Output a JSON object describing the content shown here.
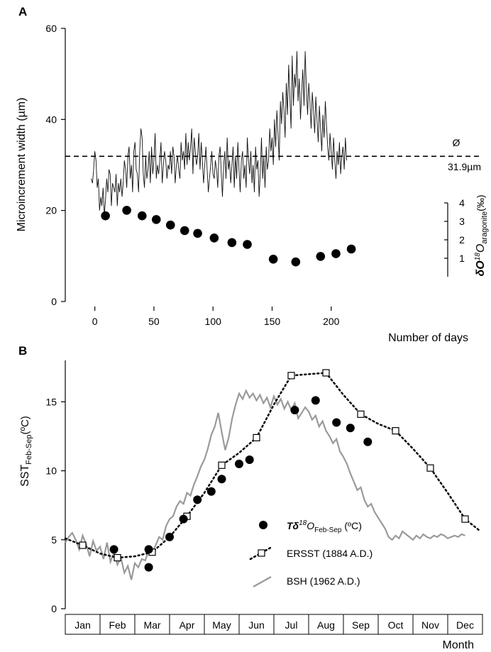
{
  "chart_data": [
    {
      "panel": "A",
      "type": "line",
      "ylabel": "Microincrement width (µm)",
      "xlabel": "Number of days",
      "xlim": [
        -25,
        328
      ],
      "ylim": [
        0,
        60
      ],
      "xticks": [
        0,
        50,
        100,
        150,
        200
      ],
      "yticks": [
        0,
        20,
        40,
        60
      ],
      "mean_line": {
        "value": 31.9,
        "symbol": "Ø",
        "label": "31.9µm"
      },
      "series": [
        {
          "kind": "line",
          "x_start": -3,
          "x_step": 1,
          "values": [
            27,
            26,
            29,
            33,
            31,
            25,
            27,
            20,
            23,
            21,
            25,
            19,
            22,
            27,
            24,
            29,
            28,
            21,
            26,
            25,
            24,
            28,
            21,
            26,
            24,
            27,
            23,
            26,
            31,
            29,
            25,
            32,
            34,
            27,
            30,
            24,
            33,
            35,
            29,
            28,
            24,
            33,
            38,
            36,
            28,
            25,
            32,
            27,
            29,
            33,
            26,
            34,
            28,
            31,
            37,
            27,
            30,
            28,
            31,
            35,
            26,
            30,
            33,
            31,
            27,
            30,
            29,
            33,
            28,
            34,
            32,
            26,
            30,
            32,
            29,
            27,
            35,
            31,
            33,
            29,
            37,
            30,
            35,
            31,
            34,
            38,
            28,
            36,
            33,
            30,
            32,
            37,
            29,
            35,
            31,
            26,
            30,
            34,
            29,
            24,
            27,
            30,
            33,
            28,
            27,
            31,
            29,
            25,
            32,
            34,
            28,
            23,
            30,
            33,
            27,
            36,
            29,
            31,
            26,
            30,
            34,
            25,
            32,
            27,
            35,
            29,
            24,
            31,
            33,
            27,
            30,
            25,
            36,
            31,
            28,
            33,
            26,
            30,
            24,
            34,
            29,
            31,
            23,
            28,
            36,
            27,
            32,
            25,
            34,
            29,
            31,
            38,
            33,
            36,
            30,
            40,
            34,
            42,
            37,
            31,
            44,
            39,
            46,
            42,
            36,
            48,
            41,
            52,
            45,
            38,
            54,
            43,
            50,
            47,
            55,
            44,
            49,
            40,
            46,
            51,
            43,
            55,
            47,
            41,
            48,
            44,
            38,
            46,
            42,
            37,
            45,
            40,
            35,
            43,
            38,
            33,
            41,
            36,
            44,
            39,
            34,
            31,
            37,
            33,
            29,
            36,
            31,
            27,
            33,
            30,
            35,
            28,
            32,
            34,
            29,
            36,
            31
          ],
          "color": "#111111"
        },
        {
          "kind": "points",
          "name": "δ18O aragonite",
          "axis": "right",
          "x": [
            9,
            27,
            40,
            52,
            64,
            76,
            87,
            101,
            116,
            129,
            151,
            170,
            191,
            204,
            217
          ],
          "y": [
            3.3,
            3.6,
            3.3,
            3.1,
            2.8,
            2.5,
            2.35,
            2.1,
            1.85,
            1.75,
            0.95,
            0.8,
            1.1,
            1.25,
            1.5
          ]
        }
      ],
      "right_axis": {
        "label": "δ18O",
        "label_sub": "aragonite",
        "label_unit": "(‰)",
        "ylim": [
          0,
          4
        ],
        "yticks": [
          1,
          2,
          3,
          4
        ]
      }
    },
    {
      "panel": "B",
      "type": "line",
      "ylabel": "SST",
      "ylabel_sub": "Feb-Sep",
      "ylabel_unit": "(ºC)",
      "xlabel": "Month",
      "ylim": [
        0,
        18
      ],
      "yticks": [
        0,
        5,
        10,
        15
      ],
      "categories": [
        "Jan",
        "Feb",
        "Mar",
        "Apr",
        "May",
        "Jun",
        "Jul",
        "Aug",
        "Sep",
        "Oct",
        "Nov",
        "Dec"
      ],
      "series": [
        {
          "name": "BSH (1962 A.D.)",
          "kind": "line",
          "color": "#9a9a9a",
          "x": [
            0,
            0.1,
            0.2,
            0.3,
            0.4,
            0.5,
            0.6,
            0.7,
            0.8,
            0.9,
            1.0,
            1.1,
            1.2,
            1.3,
            1.4,
            1.5,
            1.6,
            1.7,
            1.8,
            1.9,
            2.0,
            2.1,
            2.2,
            2.3,
            2.4,
            2.5,
            2.6,
            2.7,
            2.8,
            2.9,
            3.0,
            3.1,
            3.2,
            3.3,
            3.4,
            3.5,
            3.6,
            3.7,
            3.8,
            3.9,
            4.0,
            4.1,
            4.2,
            4.3,
            4.4,
            4.5,
            4.6,
            4.7,
            4.8,
            4.9,
            5.0,
            5.1,
            5.2,
            5.3,
            5.4,
            5.5,
            5.6,
            5.7,
            5.8,
            5.9,
            6.0,
            6.1,
            6.2,
            6.3,
            6.4,
            6.5,
            6.6,
            6.7,
            6.8,
            6.9,
            7.0,
            7.1,
            7.2,
            7.3,
            7.4,
            7.5,
            7.6,
            7.7,
            7.8,
            7.9,
            8.0,
            8.1,
            8.2,
            8.3,
            8.4,
            8.5,
            8.6,
            8.7,
            8.8,
            8.9,
            9.0,
            9.1,
            9.2,
            9.3,
            9.4,
            9.5,
            9.6,
            9.7,
            9.8,
            9.9,
            10.0,
            10.1,
            10.2,
            10.3,
            10.4,
            10.5,
            10.6,
            10.7,
            10.8,
            10.9,
            11.0,
            11.1,
            11.2,
            11.3,
            11.4,
            11.5
          ],
          "values": [
            4.8,
            5.2,
            5.5,
            5.0,
            4.3,
            5.3,
            4.7,
            3.8,
            4.9,
            4.2,
            4.5,
            3.6,
            4.8,
            3.4,
            4.1,
            3.2,
            3.7,
            2.6,
            3.1,
            2.1,
            3.3,
            3.0,
            3.6,
            3.5,
            4.2,
            4.1,
            4.6,
            5.2,
            5.0,
            6.0,
            6.5,
            6.7,
            7.4,
            7.8,
            7.6,
            8.4,
            8.2,
            9.0,
            9.6,
            10.3,
            10.8,
            11.6,
            12.6,
            13.2,
            14.2,
            12.8,
            11.5,
            12.4,
            13.8,
            14.8,
            15.6,
            15.2,
            15.8,
            15.3,
            15.6,
            15.1,
            15.5,
            14.9,
            15.3,
            14.6,
            15.4,
            14.8,
            15.2,
            14.5,
            15.0,
            14.4,
            14.9,
            13.8,
            14.2,
            14.6,
            14.3,
            13.7,
            14.0,
            13.2,
            13.6,
            12.9,
            12.5,
            12.0,
            12.3,
            11.4,
            11.0,
            10.5,
            9.8,
            9.2,
            8.6,
            8.8,
            7.9,
            7.4,
            7.6,
            7.0,
            6.6,
            6.2,
            5.8,
            5.2,
            5.0,
            5.3,
            5.1,
            5.6,
            5.4,
            5.2,
            5.0,
            5.3,
            5.1,
            5.4,
            5.2,
            5.1,
            5.3,
            5.2,
            5.4,
            5.3,
            5.1,
            5.2,
            5.3,
            5.2,
            5.4,
            5.3
          ]
        },
        {
          "name": "ERSST (1884 A.D.)",
          "kind": "line-markers",
          "color": "#111111",
          "x": [
            0.5,
            1.5,
            2.5,
            3.5,
            4.5,
            5.5,
            6.5,
            7.5,
            8.5,
            9.5,
            10.5,
            11.5
          ],
          "values": [
            4.6,
            3.7,
            4.1,
            6.7,
            10.4,
            12.4,
            16.9,
            17.1,
            14.1,
            12.9,
            10.2,
            6.5
          ],
          "x_cont": [
            0,
            0.5,
            1.0,
            1.5,
            2.0,
            2.5,
            3.0,
            3.5,
            4.0,
            4.5,
            5.0,
            5.5,
            6.0,
            6.5,
            7.0,
            7.5,
            8.0,
            8.5,
            9.0,
            9.5,
            10.0,
            10.5,
            11.0,
            11.5,
            11.9
          ],
          "values_cont": [
            5.1,
            4.6,
            4.0,
            3.7,
            3.8,
            4.1,
            5.2,
            6.7,
            8.4,
            10.4,
            11.3,
            12.4,
            14.8,
            16.9,
            17.0,
            17.1,
            15.5,
            14.1,
            13.4,
            12.9,
            11.6,
            10.2,
            8.4,
            6.5,
            5.7
          ]
        },
        {
          "name": "Tδ18OFeb-Sep (ºC)",
          "legend_prefix": "Tδ",
          "legend_sup": "18",
          "legend_mid": "O",
          "legend_sub": "Feb-Sep",
          "legend_unit": " (ºC)",
          "kind": "points",
          "x": [
            1.4,
            2.4,
            2.4,
            3.0,
            3.4,
            3.8,
            4.2,
            4.5,
            5.0,
            5.3,
            6.6,
            7.2,
            7.8,
            8.2,
            8.7
          ],
          "values": [
            4.3,
            3.0,
            4.3,
            5.2,
            6.5,
            7.9,
            8.5,
            9.4,
            10.5,
            10.8,
            14.4,
            15.1,
            13.5,
            13.1,
            12.1
          ]
        }
      ]
    }
  ]
}
